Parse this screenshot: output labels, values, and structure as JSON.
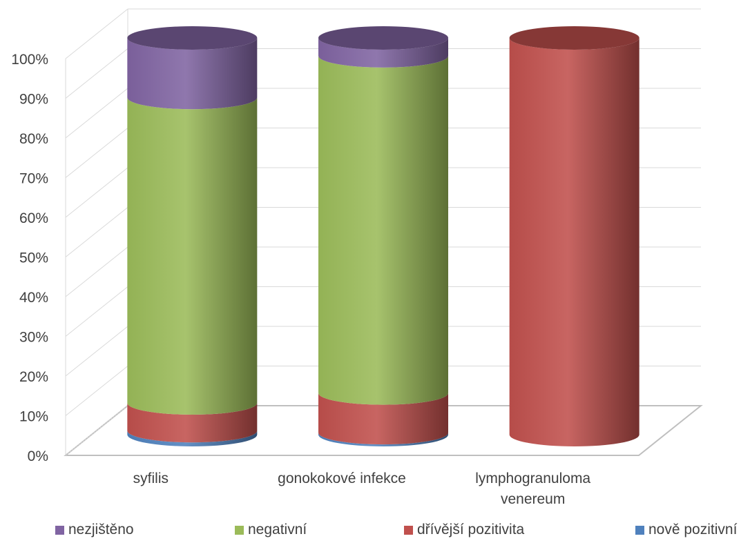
{
  "chart_data": {
    "type": "bar",
    "stacked": "percent",
    "style": "3d-cylinder",
    "categories": [
      "syfilis",
      "gonokokové infekce",
      "lymphogranuloma venereum"
    ],
    "series": [
      {
        "name": "nově pozitivní",
        "color": "#4F81BD",
        "values": [
          1,
          0.5,
          0
        ]
      },
      {
        "name": "dřívější pozitivita",
        "color": "#C0504D",
        "values": [
          7,
          10,
          100
        ]
      },
      {
        "name": "negativní",
        "color": "#9BBB59",
        "values": [
          77,
          85,
          0
        ]
      },
      {
        "name": "nezjištěno",
        "color": "#8064A2",
        "values": [
          15,
          4.5,
          0
        ]
      }
    ],
    "y_ticks": [
      "0%",
      "10%",
      "20%",
      "30%",
      "40%",
      "50%",
      "60%",
      "70%",
      "80%",
      "90%",
      "100%"
    ],
    "ylim": [
      0,
      100
    ],
    "grid": true,
    "legend_position": "bottom",
    "legend_order": [
      "nezjištěno",
      "negativní",
      "dřívější pozitivita",
      "nově pozitivní"
    ],
    "title": "",
    "xlabel": "",
    "ylabel": ""
  }
}
